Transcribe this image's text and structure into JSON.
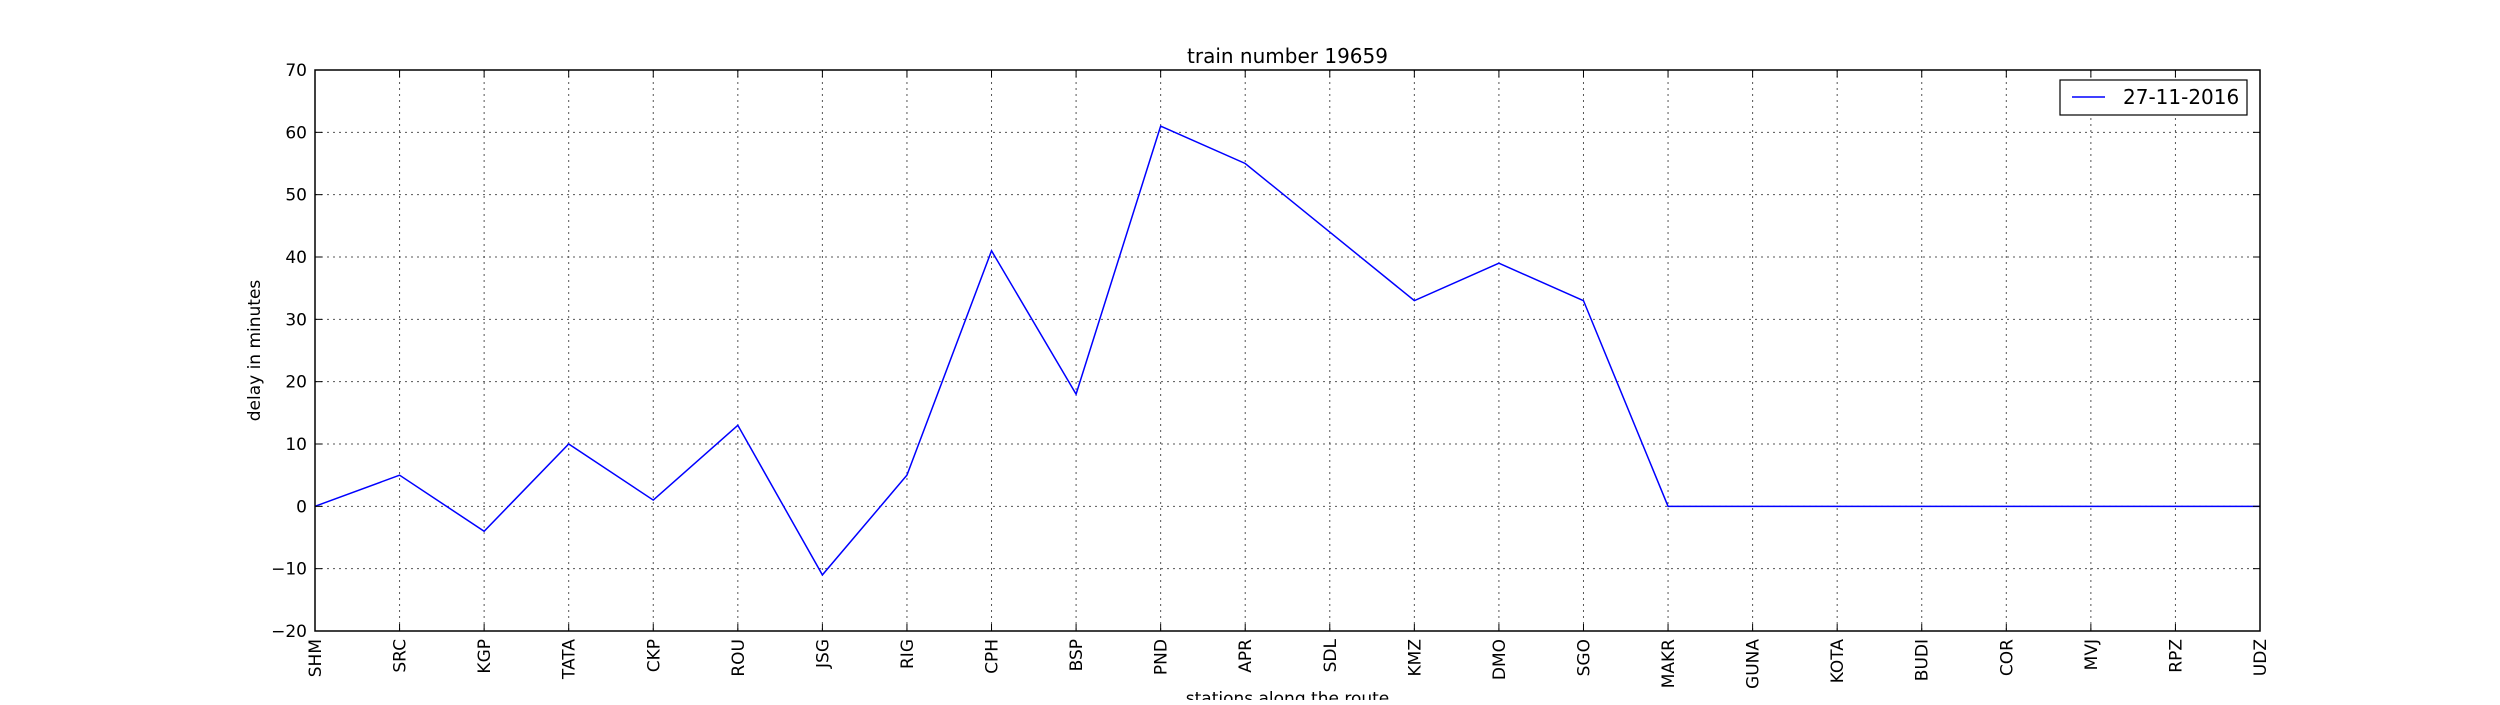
{
  "chart_data": {
    "type": "line",
    "title": "train number 19659",
    "xlabel": "stations along the route",
    "ylabel": "delay in minutes",
    "ylim": [
      -20,
      70
    ],
    "yticks": [
      -20,
      -10,
      0,
      10,
      20,
      30,
      40,
      50,
      60,
      70
    ],
    "categories": [
      "SHM",
      "SRC",
      "KGP",
      "TATA",
      "CKP",
      "ROU",
      "JSG",
      "RIG",
      "CPH",
      "BSP",
      "PND",
      "APR",
      "SDL",
      "KMZ",
      "DMO",
      "SGO",
      "MAKR",
      "GUNA",
      "KOTA",
      "BUDI",
      "COR",
      "MVJ",
      "RPZ",
      "UDZ"
    ],
    "series": [
      {
        "name": "27-11-2016",
        "color": "#0000ff",
        "values": [
          0,
          5,
          -4,
          10,
          1,
          13,
          -11,
          5,
          41,
          18,
          61,
          55,
          44,
          33,
          39,
          33,
          0,
          0,
          0,
          0,
          0,
          0,
          0,
          0
        ]
      }
    ],
    "grid": true,
    "legend_position": "top-right"
  }
}
